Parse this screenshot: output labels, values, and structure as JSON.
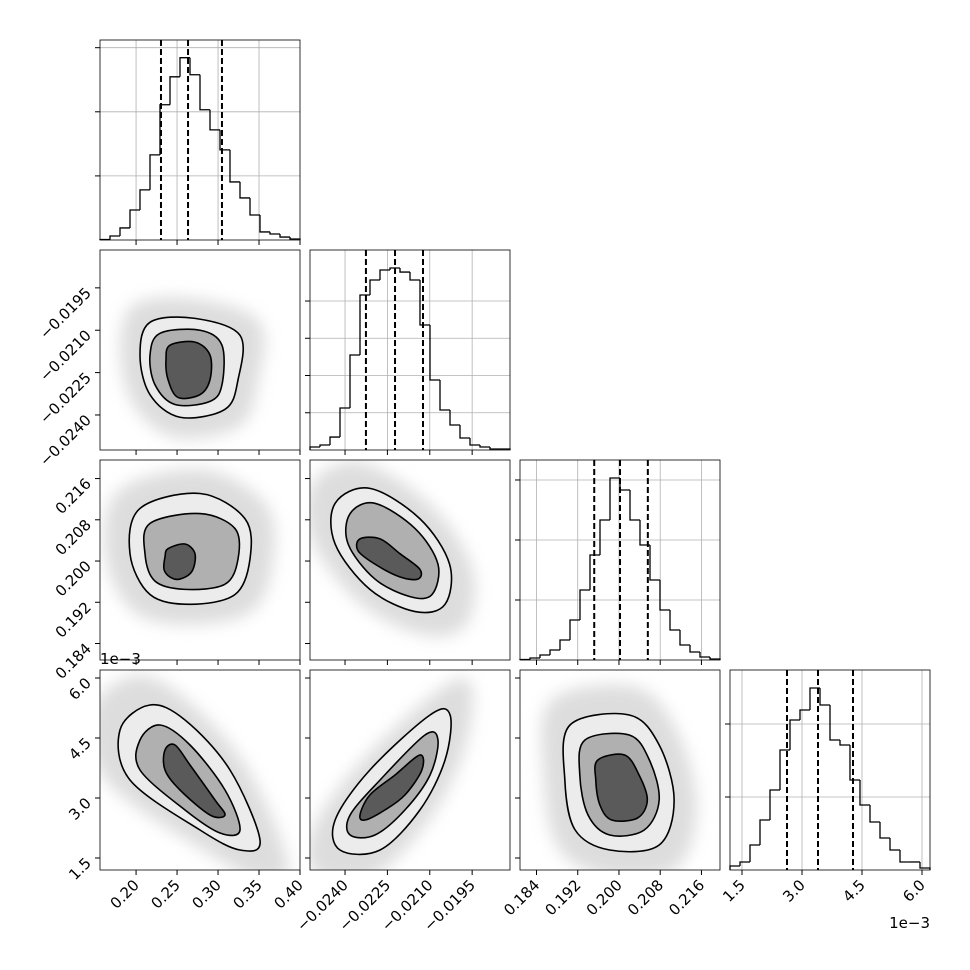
{
  "chart_data": {
    "type": "corner",
    "color": "#000000",
    "contour_colors": [
      "#ececec",
      "#b0b0b0",
      "#5a5a5a"
    ],
    "parameters": [
      {
        "lim": [
          0.156,
          0.4
        ],
        "ticks": [
          {
            "value": 0.2,
            "label": "0.20"
          },
          0.25,
          {
            "value": 0.3,
            "label": "0.30"
          },
          0.35,
          {
            "value": 0.4,
            "label": "0.40"
          }
        ],
        "bins": [
          0.156,
          0.1682,
          0.1804,
          0.1926,
          0.2048,
          0.217,
          0.2292,
          0.2414,
          0.2536,
          0.2658,
          0.278,
          0.2902,
          0.3024,
          0.3146,
          0.3268,
          0.339,
          0.3512,
          0.3634,
          0.3756,
          0.3878,
          0.4
        ],
        "counts": [
          4,
          31,
          94,
          234,
          391,
          664,
          1055,
          1273,
          1422,
          1289,
          1016,
          859,
          703,
          453,
          328,
          195,
          63,
          47,
          23,
          8
        ],
        "hist_ylim": [
          0,
          1560
        ],
        "hist_yticks": [
          500,
          1000,
          1500
        ],
        "quantiles": [
          0.2304,
          0.2634,
          0.3048
        ]
      },
      {
        "lim": [
          -0.02524,
          -0.01816
        ],
        "ticks": [
          {
            "value": -0.024,
            "label": "−0.0240"
          },
          {
            "value": -0.0225,
            "label": "−0.0225"
          },
          {
            "value": -0.021,
            "label": "−0.0210"
          },
          {
            "value": -0.0195,
            "label": "−0.0195"
          }
        ],
        "bins": [
          -0.02524,
          -0.024886,
          -0.024532,
          -0.024178,
          -0.023824,
          -0.02347,
          -0.023116,
          -0.022762,
          -0.022408,
          -0.022054,
          -0.0217,
          -0.021346,
          -0.020992,
          -0.020638,
          -0.020284,
          -0.01993,
          -0.019576,
          -0.019222,
          -0.018868,
          -0.018514,
          -0.01816
        ],
        "counts": [
          40,
          67,
          174,
          564,
          1275,
          2081,
          2282,
          2416,
          2443,
          2389,
          2282,
          1678,
          940,
          537,
          336,
          161,
          67,
          40,
          13,
          13
        ],
        "hist_ylim": [
          0,
          2685
        ],
        "hist_yticks": [
          500,
          1000,
          1500,
          2000
        ],
        "quantiles": [
          -0.02326,
          -0.02223,
          -0.02124
        ]
      },
      {
        "lim": [
          0.1808,
          0.2196
        ],
        "ticks": [
          0.184,
          0.192,
          {
            "value": 0.2,
            "label": "0.200"
          },
          0.208,
          0.216
        ],
        "bins": [
          0.1808,
          0.18274,
          0.18468,
          0.18662,
          0.18856,
          0.1905,
          0.19244,
          0.19438,
          0.19632,
          0.19826,
          0.2002,
          0.20214,
          0.20408,
          0.20602,
          0.20796,
          0.2099,
          0.21184,
          0.21378,
          0.21572,
          0.21766,
          0.2196
        ],
        "counts": [
          8,
          33,
          83,
          167,
          333,
          667,
          1167,
          1750,
          2333,
          3033,
          2833,
          2333,
          1917,
          1333,
          833,
          500,
          250,
          133,
          50,
          17
        ],
        "hist_ylim": [
          0,
          3333
        ],
        "hist_yticks": [
          1000,
          2000,
          3000
        ],
        "quantiles": [
          0.1952,
          0.2002,
          0.2056
        ]
      },
      {
        "lim": [
          0.0012,
          0.0062
        ],
        "ticks": [
          {
            "value": 0.0015,
            "label": "1.5"
          },
          {
            "value": 0.003,
            "label": "3.0"
          },
          {
            "value": 0.0045,
            "label": "4.5"
          },
          {
            "value": 0.006,
            "label": "6.0"
          }
        ],
        "offset_label": "1e−3",
        "bins": [
          0.0012,
          0.00145,
          0.0017,
          0.00195,
          0.0022,
          0.00245,
          0.0027,
          0.00295,
          0.0032,
          0.00345,
          0.0037,
          0.00395,
          0.0042,
          0.00445,
          0.0047,
          0.00495,
          0.0052,
          0.00545,
          0.0057,
          0.00595,
          0.0062
        ],
        "counts": [
          55,
          110,
          342,
          685,
          1096,
          1644,
          2055,
          2192,
          2493,
          2260,
          1781,
          1712,
          1233,
          890,
          658,
          438,
          274,
          110,
          110,
          27
        ],
        "hist_ylim": [
          0,
          2740
        ],
        "hist_yticks": [
          1000,
          2000
        ],
        "quantiles": [
          0.002625,
          0.0034,
          0.004275
        ]
      }
    ],
    "panels": [
      {
        "contours": [
          {
            "x": [
              0.217,
              0.2719,
              0.3268,
              0.3244,
              0.3085,
              0.2536,
              0.217,
              0.2048
            ],
            "y": [
              -0.02072,
              -0.02058,
              -0.02118,
              -0.02275,
              -0.0238,
              -0.02408,
              -0.02328,
              -0.02188
            ]
          },
          {
            "x": [
              0.2292,
              0.278,
              0.3048,
              0.3048,
              0.2902,
              0.2475,
              0.2231,
              0.217
            ],
            "y": [
              -0.02111,
              -0.021,
              -0.02153,
              -0.02293,
              -0.02352,
              -0.02363,
              -0.02293,
              -0.02188
            ]
          },
          {
            "x": [
              0.2414,
              0.2719,
              0.2902,
              0.2902,
              0.278,
              0.2512,
              0.239,
              0.2365
            ],
            "y": [
              -0.02153,
              -0.02142,
              -0.02188,
              -0.02275,
              -0.02328,
              -0.02338,
              -0.02275,
              -0.02205
            ]
          }
        ]
      },
      {
        "contours": [
          {
            "x": [
              0.2048,
              0.278,
              0.3329,
              0.339,
              0.3207,
              0.2658,
              0.217,
              0.1926
            ],
            "y": [
              0.2102,
              0.2131,
              0.2082,
              0.2004,
              0.1935,
              0.1916,
              0.1935,
              0.2014
            ]
          },
          {
            "x": [
              0.217,
              0.278,
              0.3207,
              0.3244,
              0.3085,
              0.2597,
              0.2231,
              0.2109
            ],
            "y": [
              0.2073,
              0.2092,
              0.2063,
              0.2004,
              0.1955,
              0.1945,
              0.1961,
              0.2014
            ]
          },
          {
            "x": [
              0.239,
              0.2597,
              0.2719,
              0.2682,
              0.2536,
              0.2414,
              0.2341,
              0.2353
            ],
            "y": [
              0.2024,
              0.2033,
              0.2014,
              0.198,
              0.1965,
              0.1969,
              0.1984,
              0.2008
            ]
          }
        ]
      },
      {
        "contours": [
          {
            "x": [
              -0.02435,
              -0.02312,
              -0.02135,
              -0.0203,
              -0.02046,
              -0.02152,
              -0.02312,
              -0.02435
            ],
            "y": [
              0.2112,
              0.2141,
              0.2082,
              0.1994,
              0.1916,
              0.1902,
              0.1945,
              0.2033
            ]
          },
          {
            "x": [
              -0.02382,
              -0.02294,
              -0.02152,
              -0.02071,
              -0.02092,
              -0.0217,
              -0.02294,
              -0.02389
            ],
            "y": [
              0.2092,
              0.2112,
              0.2063,
              0.1994,
              0.1935,
              0.1931,
              0.1965,
              0.2033
            ]
          },
          {
            "x": [
              -0.02347,
              -0.02276,
              -0.02205,
              -0.02135,
              -0.02142,
              -0.02205,
              -0.02294,
              -0.02354
            ],
            "y": [
              0.2043,
              0.2043,
              0.2014,
              0.1984,
              0.1965,
              0.1969,
              0.1994,
              0.202
            ]
          }
        ]
      },
      {
        "contours": [
          {
            "x": [
              0.1804,
              0.217,
              0.2597,
              0.3146,
              0.3512,
              0.3268,
              0.278,
              0.1926
            ],
            "y": [
              0.0047,
              0.005325,
              0.00495,
              0.0037,
              0.00195,
              0.0017,
              0.0022,
              0.00345
            ]
          },
          {
            "x": [
              0.2048,
              0.2292,
              0.2658,
              0.3085,
              0.3268,
              0.3024,
              0.2597,
              0.2048
            ],
            "y": [
              0.00445,
              0.004825,
              0.004325,
              0.0032,
              0.0022,
              0.002125,
              0.0027,
              0.0037
            ]
          },
          {
            "x": [
              0.2353,
              0.2475,
              0.2658,
              0.2963,
              0.3085,
              0.2902,
              0.2536,
              0.2353
            ],
            "y": [
              0.0042,
              0.004325,
              0.003825,
              0.00295,
              0.002575,
              0.002575,
              0.0032,
              0.0037
            ]
          }
        ]
      },
      {
        "contours": [
          {
            "x": [
              -0.02418,
              -0.02435,
              -0.02312,
              -0.02099,
              -0.02028,
              -0.02046,
              -0.02135,
              -0.02276
            ],
            "y": [
              0.0017,
              0.00245,
              0.0037,
              0.005075,
              0.005075,
              0.00395,
              0.0027,
              0.0017
            ]
          },
          {
            "x": [
              -0.02382,
              -0.02382,
              -0.02276,
              -0.02117,
              -0.02071,
              -0.02099,
              -0.02188,
              -0.02294
            ],
            "y": [
              0.002075,
              0.002575,
              0.00345,
              0.004575,
              0.00445,
              0.003575,
              0.0027,
              0.002075
            ]
          },
          {
            "x": [
              -0.02347,
              -0.02312,
              -0.02223,
              -0.02135,
              -0.02128,
              -0.02188,
              -0.02259,
              -0.02329
            ],
            "y": [
              0.002575,
              0.003075,
              0.003575,
              0.004075,
              0.0037,
              0.003075,
              0.0027,
              0.00245
            ]
          }
        ]
      },
      {
        "contours": [
          {
            "x": [
              0.1905,
              0.202,
              0.2078,
              0.2107,
              0.2078,
              0.1982,
              0.1915,
              0.1895
            ],
            "y": [
              0.004825,
              0.005075,
              0.004325,
              0.00295,
              0.001825,
              0.0017,
              0.0022,
              0.00345
            ]
          },
          {
            "x": [
              0.1934,
              0.202,
              0.2059,
              0.2078,
              0.2049,
              0.1982,
              0.194,
              0.1924
            ],
            "y": [
              0.00445,
              0.004575,
              0.00395,
              0.00295,
              0.0022,
              0.002075,
              0.002575,
              0.003575
            ]
          },
          {
            "x": [
              0.1959,
              0.2011,
              0.2039,
              0.2055,
              0.2036,
              0.1986,
              0.1963,
              0.1955
            ],
            "y": [
              0.00395,
              0.004075,
              0.003575,
              0.00295,
              0.0025,
              0.00245,
              0.002825,
              0.00345
            ]
          }
        ]
      }
    ]
  }
}
